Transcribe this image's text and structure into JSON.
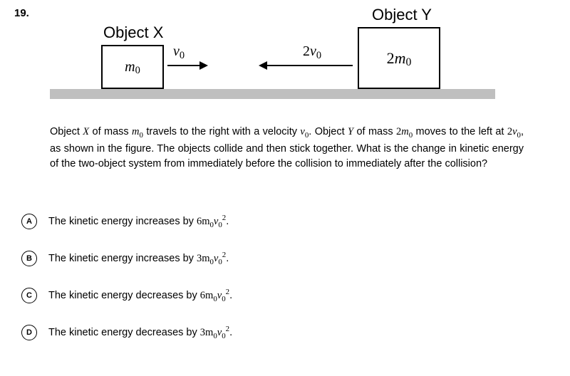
{
  "question_number": "19.",
  "diagram": {
    "object_x_label": "Object X",
    "object_y_label": "Object Y",
    "box_x_content": "m",
    "box_x_sub": "0",
    "box_y_prefix": "2m",
    "box_y_sub": "0",
    "velocity_x_prefix": "v",
    "velocity_x_sub": "0",
    "velocity_y_prefix": "2v",
    "velocity_y_sub": "0",
    "ground_color": "#bfbfbf",
    "box_border_color": "#000000"
  },
  "question_text": {
    "p1": "Object ",
    "var1": "X",
    "p2": " of mass ",
    "var2_a": "m",
    "var2_b": "0",
    "p3": " travels to the right with a velocity ",
    "var3_a": "v",
    "var3_b": "0",
    "p4": ". Object ",
    "var4": "Y",
    "p5": " of mass ",
    "var5_a": "2m",
    "var5_b": "0",
    "p6": " moves to the left at ",
    "var6_a": "2v",
    "var6_b": "0",
    "p7": ", as shown in the figure. The objects collide and then stick together. What is the change in kinetic energy of the two-object system from immediately before the collision to immediately after the collision?"
  },
  "options": {
    "a": {
      "letter": "A",
      "prefix": "The kinetic energy increases by ",
      "coef": "6m",
      "sub1": "0",
      "v": "v",
      "sub2": "0",
      "sup": "2",
      "suffix": "."
    },
    "b": {
      "letter": "B",
      "prefix": "The kinetic energy increases by ",
      "coef": "3m",
      "sub1": "0",
      "v": "v",
      "sub2": "0",
      "sup": "2",
      "suffix": "."
    },
    "c": {
      "letter": "C",
      "prefix": "The kinetic energy decreases by ",
      "coef": "6m",
      "sub1": "0",
      "v": "v",
      "sub2": "0",
      "sup": "2",
      "suffix": "."
    },
    "d": {
      "letter": "D",
      "prefix": "The kinetic energy decreases by ",
      "coef": "3m",
      "sub1": "0",
      "v": "v",
      "sub2": "0",
      "sup": "2",
      "suffix": "."
    }
  }
}
